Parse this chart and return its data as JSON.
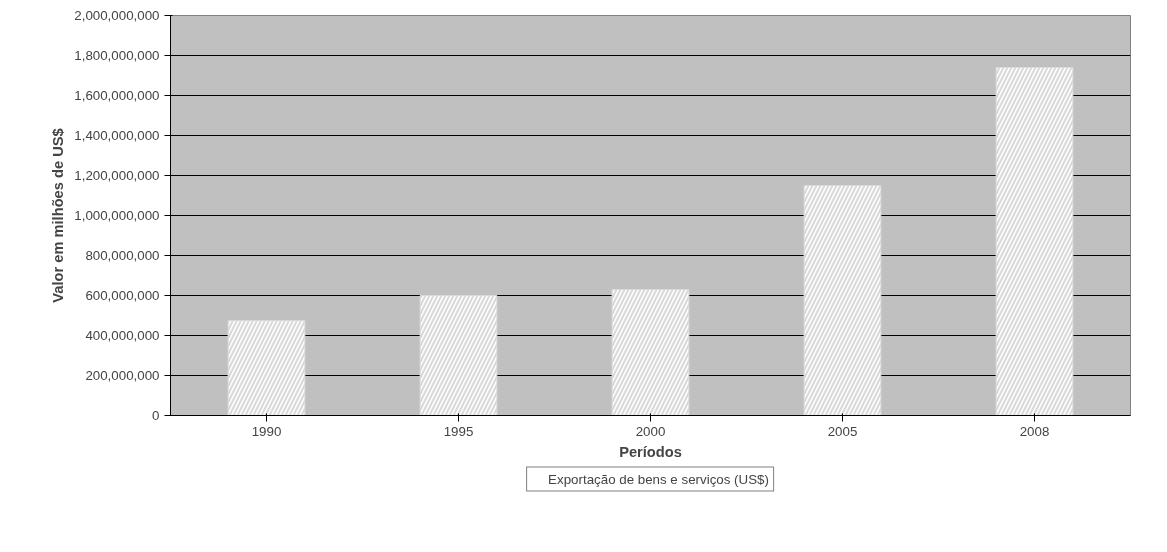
{
  "chart_data": {
    "type": "bar",
    "xlabel": "Períodos",
    "ylabel": "Valor em milhões de US$",
    "categories": [
      "1990",
      "1995",
      "2000",
      "2005",
      "2008"
    ],
    "series": [
      {
        "name": "Exportação de bens e serviços (US$)",
        "color": "#d9d9d9",
        "values": [
          475000000,
          600000000,
          630000000,
          1150000000,
          1740000000
        ]
      }
    ],
    "ylim": [
      0,
      2000000000
    ],
    "yticks": [
      {
        "value": 0,
        "label": "0"
      },
      {
        "value": 200000000,
        "label": "200,000,000"
      },
      {
        "value": 400000000,
        "label": "400,000,000"
      },
      {
        "value": 600000000,
        "label": "600,000,000"
      },
      {
        "value": 800000000,
        "label": "800,000,000"
      },
      {
        "value": 1000000000,
        "label": "1,000,000,000"
      },
      {
        "value": 1200000000,
        "label": "1,200,000,000"
      },
      {
        "value": 1400000000,
        "label": "1,400,000,000"
      },
      {
        "value": 1600000000,
        "label": "1,600,000,000"
      },
      {
        "value": 1800000000,
        "label": "1,800,000,000"
      },
      {
        "value": 2000000000,
        "label": "2,000,000,000"
      }
    ],
    "grid": "y",
    "legend": "bottom"
  }
}
